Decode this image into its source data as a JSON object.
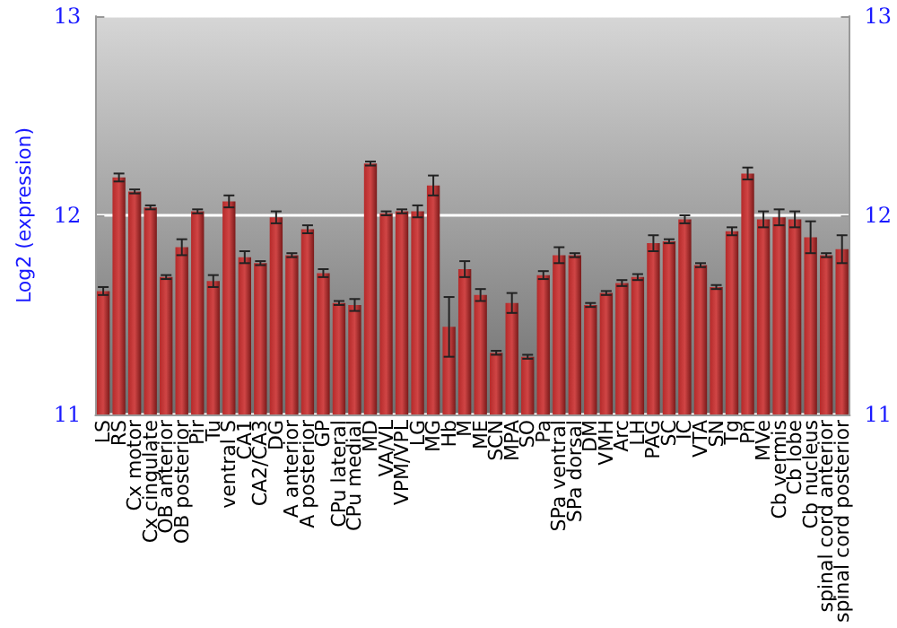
{
  "chart_data": {
    "type": "bar",
    "ylabel": "Log2 (expression)",
    "categories": [
      "LS",
      "RS",
      "Cx motor",
      "Cx cingulate",
      "OB anterior",
      "OB posterior",
      "Pir",
      "Tu",
      "ventral S",
      "CA1",
      "CA2/CA3",
      "DG",
      "A anterior",
      "A posterior",
      "GP",
      "CPu lateral",
      "CPu medial",
      "MD",
      "VA/VL",
      "VPM/VPL",
      "LG",
      "MG",
      "Hb",
      "M",
      "ME",
      "SCN",
      "MPA",
      "SO",
      "Pa",
      "SPa ventral",
      "SPa dorsal",
      "DM",
      "VMH",
      "Arc",
      "LH",
      "PAG",
      "SC",
      "IC",
      "VTA",
      "SN",
      "Tg",
      "Pn",
      "MVe",
      "Cb vermis",
      "Cb lobe",
      "Cb nucleus",
      "spinal cord anterior",
      "spinal cord posterior"
    ],
    "values": [
      11.62,
      12.19,
      12.12,
      12.04,
      11.69,
      11.84,
      12.02,
      11.67,
      12.07,
      11.79,
      11.76,
      11.99,
      11.8,
      11.93,
      11.71,
      11.56,
      11.55,
      12.26,
      12.01,
      12.02,
      12.02,
      12.15,
      11.44,
      11.73,
      11.6,
      11.31,
      11.56,
      11.29,
      11.7,
      11.8,
      11.8,
      11.55,
      11.61,
      11.66,
      11.69,
      11.86,
      11.87,
      11.98,
      11.75,
      11.64,
      11.92,
      12.21,
      11.98,
      11.99,
      11.98,
      11.89,
      11.8,
      11.83
    ],
    "errors": [
      0.02,
      0.02,
      0.01,
      0.01,
      0.01,
      0.04,
      0.01,
      0.03,
      0.03,
      0.03,
      0.01,
      0.03,
      0.01,
      0.02,
      0.02,
      0.01,
      0.03,
      0.01,
      0.01,
      0.01,
      0.03,
      0.05,
      0.15,
      0.04,
      0.03,
      0.01,
      0.05,
      0.01,
      0.02,
      0.04,
      0.01,
      0.01,
      0.01,
      0.015,
      0.015,
      0.04,
      0.01,
      0.02,
      0.01,
      0.01,
      0.02,
      0.03,
      0.04,
      0.04,
      0.04,
      0.08,
      0.01,
      0.07
    ],
    "color": "#b52a2a",
    "ylim": [
      11,
      13
    ],
    "yticks": [
      11,
      12,
      13
    ],
    "y2lim": [
      11,
      13
    ],
    "y2ticks": [
      11,
      12,
      13
    ],
    "grid": "y"
  }
}
